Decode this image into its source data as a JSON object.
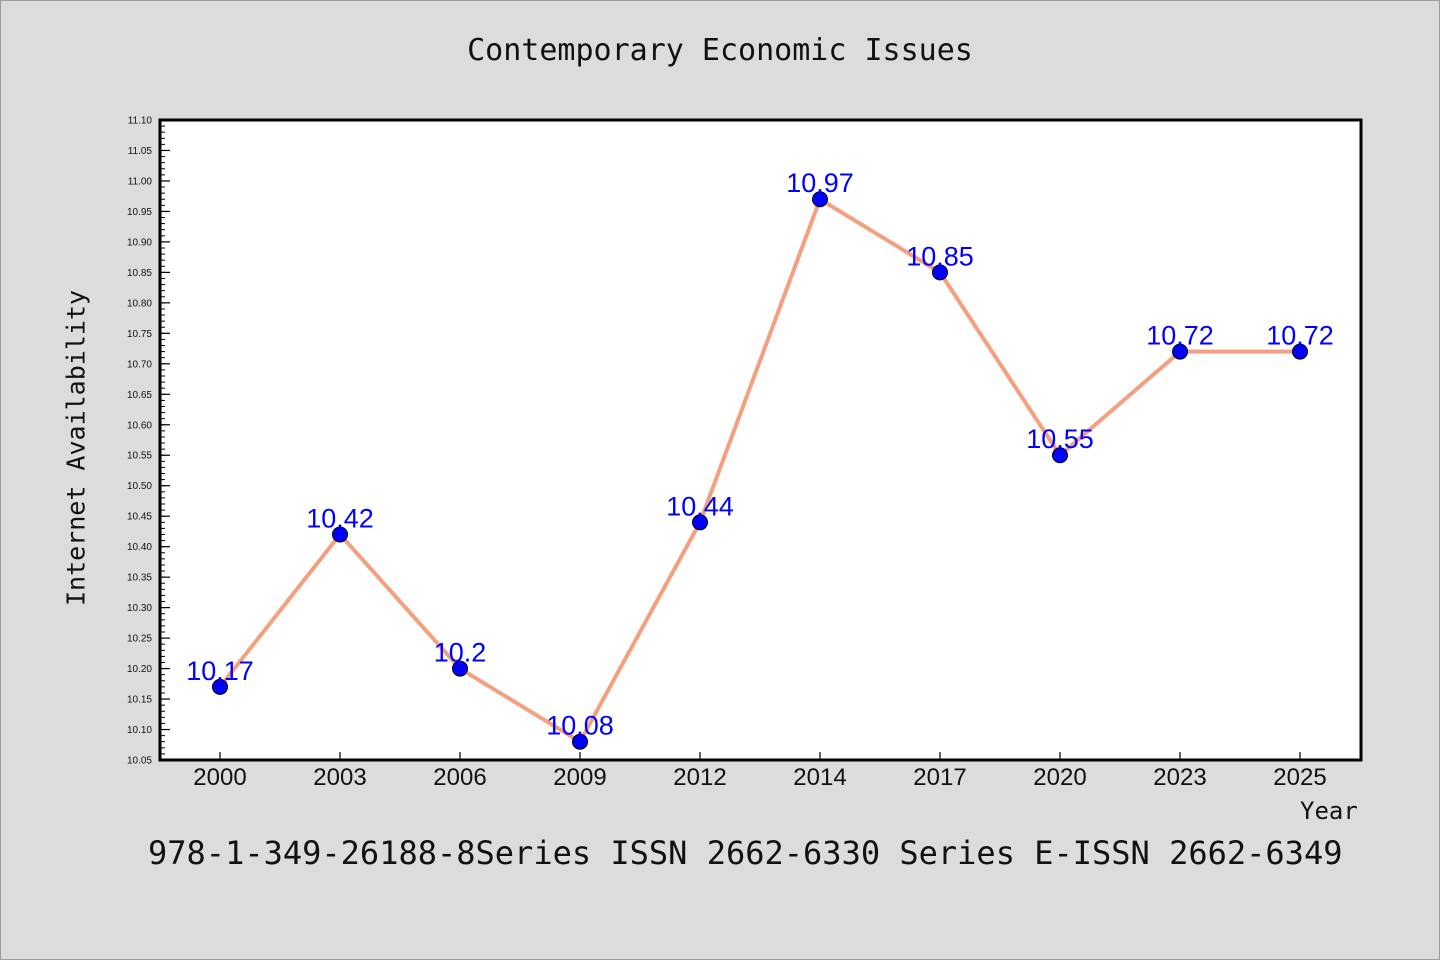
{
  "title": "Contemporary Economic Issues",
  "footer": "978-1-349-26188-8Series ISSN 2662-6330 Series E-ISSN 2662-6349",
  "chart_data": {
    "type": "line",
    "title": "Contemporary Economic Issues",
    "xlabel": "Year",
    "ylabel": "Internet Availability",
    "categories": [
      "2000",
      "2003",
      "2006",
      "2009",
      "2012",
      "2014",
      "2017",
      "2020",
      "2023",
      "2025"
    ],
    "series": [
      {
        "values": [
          10.17,
          10.42,
          10.2,
          10.08,
          10.44,
          10.97,
          10.85,
          10.55,
          10.72,
          10.72
        ],
        "labels": [
          "10.17",
          "10.42",
          "10.2",
          "10.08",
          "10.44",
          "10.97",
          "10.85",
          "10.55",
          "10.72",
          "10.72"
        ]
      }
    ],
    "ylim": [
      10.05,
      11.1
    ],
    "yticks": [
      "10.05",
      "10.10",
      "10.15",
      "10.20",
      "10.25",
      "10.30",
      "10.35",
      "10.40",
      "10.45",
      "10.50",
      "10.55",
      "10.60",
      "10.65",
      "10.70",
      "10.75",
      "10.80",
      "10.85",
      "10.90",
      "10.95",
      "11.00",
      "11.05",
      "11.10"
    ],
    "grid": false,
    "legend": "none",
    "colors": {
      "line": "#f4a07f",
      "marker": "#0000ff",
      "data_label": "#0000ff",
      "background": "#dcdcdc",
      "plot_background": "#ffffff"
    }
  }
}
